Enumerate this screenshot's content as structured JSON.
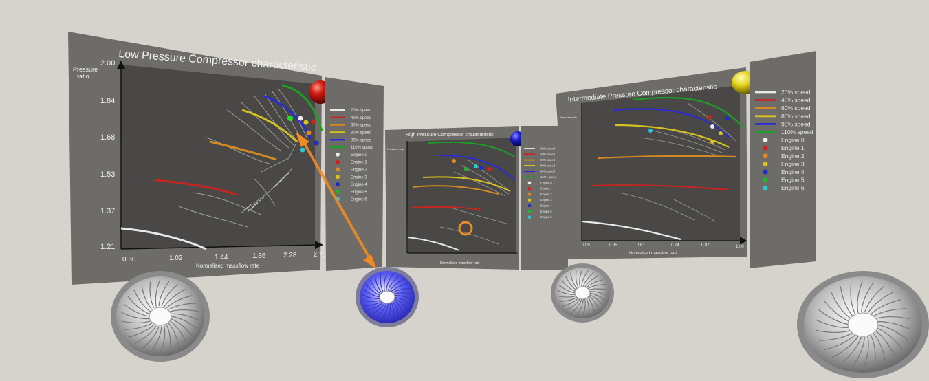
{
  "lp_chart": {
    "title": "Low Pressure Compressor characteristic",
    "ylabel_line1": "Pressure",
    "ylabel_line2": "ratio",
    "xlabel": "Normalised massflow rate",
    "y_ticks": [
      "2.00",
      "1.84",
      "1.68",
      "1.53",
      "1.37",
      "1.21"
    ],
    "x_ticks": [
      "0.60",
      "1.02",
      "1.44",
      "1.86",
      "2.28",
      "2.70"
    ]
  },
  "hp_chart": {
    "title": "High Pressure Compressor characteristic",
    "ylabel": "Pressure ratio",
    "xlabel": "Normalised massflow rate"
  },
  "ip_chart": {
    "title": "Intermediate Pressure Compressor characteristic",
    "ylabel": "Pressure ratio",
    "xlabel": "Normalised massflow rate",
    "x_ticks": [
      "0.09",
      "0.35",
      "0.61",
      "0.74",
      "0.87",
      "1.00"
    ]
  },
  "legend": {
    "items": [
      "20% speed",
      "40% speed",
      "60% speed",
      "80% speed",
      "90% speed",
      "110% speed",
      "Engine 0",
      "Engine 1",
      "Engine 2",
      "Engine 3",
      "Engine 4",
      "Engine 5",
      "Engine 6"
    ]
  },
  "colors": {
    "speed_20": "#e8e8e8",
    "speed_40": "#c4261f",
    "speed_60": "#d48a1e",
    "speed_80": "#d6c21c",
    "speed_90": "#2a2bd6",
    "speed_110": "#1f9e25",
    "engine_0": "#ececec",
    "engine_1": "#d4201c",
    "engine_2": "#e08a20",
    "engine_3": "#d9c51a",
    "engine_4": "#2129c9",
    "engine_5": "#20b42a",
    "engine_6": "#2ac9d6",
    "selection": "#f08a24",
    "background": "#d6d3cd"
  },
  "icons": [
    "red-sphere-icon",
    "blue-sphere-icon",
    "yellow-sphere-icon",
    "jet-engine-fan-icon"
  ]
}
